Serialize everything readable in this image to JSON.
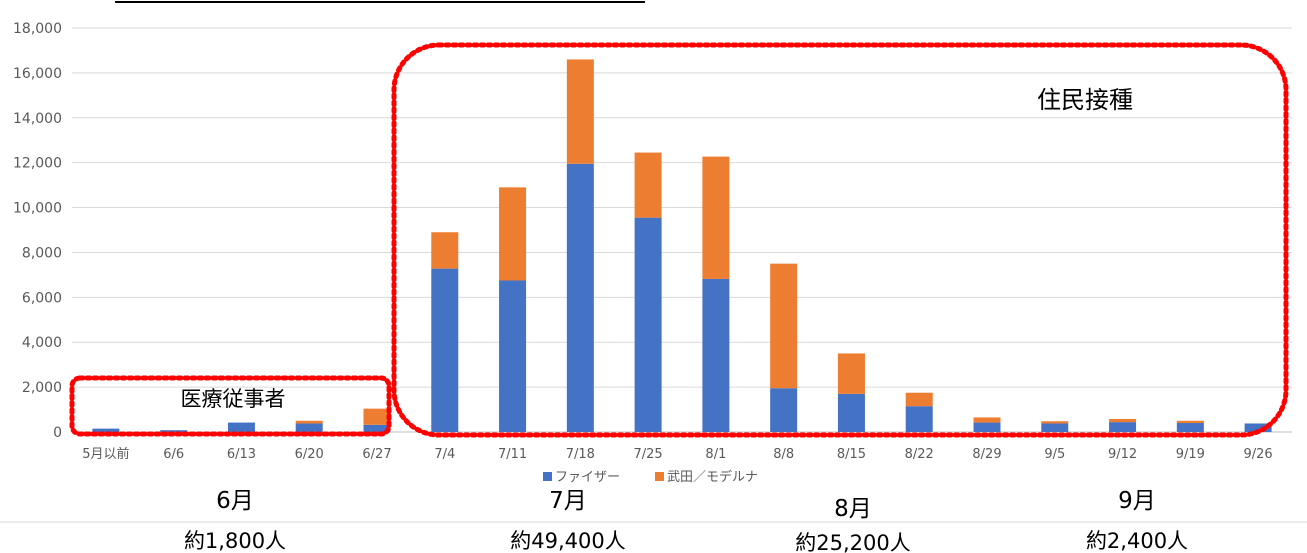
{
  "chart_data": {
    "type": "bar",
    "stacked": true,
    "categories": [
      "5月以前",
      "6/6",
      "6/13",
      "6/20",
      "6/27",
      "7/4",
      "7/11",
      "7/18",
      "7/25",
      "8/1",
      "8/8",
      "8/15",
      "8/22",
      "8/29",
      "9/5",
      "9/12",
      "9/19",
      "9/26"
    ],
    "series": [
      {
        "name": "ファイザー",
        "color": "#4472C4",
        "values": [
          150,
          80,
          420,
          380,
          320,
          7280,
          6750,
          11950,
          9550,
          6820,
          1950,
          1700,
          1150,
          420,
          380,
          440,
          400,
          380
        ]
      },
      {
        "name": "武田／モデルナ",
        "color": "#ED7D31",
        "values": [
          0,
          0,
          0,
          120,
          720,
          1620,
          4150,
          4650,
          2900,
          5450,
          5550,
          1800,
          600,
          230,
          100,
          140,
          100,
          0
        ]
      }
    ],
    "ylim": [
      0,
      18000
    ],
    "yticks": [
      0,
      2000,
      4000,
      6000,
      8000,
      10000,
      12000,
      14000,
      16000,
      18000
    ],
    "ytick_labels": [
      "0",
      "2,000",
      "4,000",
      "6,000",
      "8,000",
      "10,000",
      "12,000",
      "14,000",
      "16,000",
      "18,000"
    ],
    "grid": true,
    "legend_position": "bottom",
    "annotations": {
      "medical_workers": "医療従事者",
      "residents": "住民接種",
      "highlight_color": "#FF0000"
    },
    "months": [
      {
        "label": "6月",
        "total": "約1,800人"
      },
      {
        "label": "7月",
        "total": "約49,400人"
      },
      {
        "label": "8月",
        "total": "約25,200人"
      },
      {
        "label": "9月",
        "total": "約2,400人"
      }
    ]
  }
}
